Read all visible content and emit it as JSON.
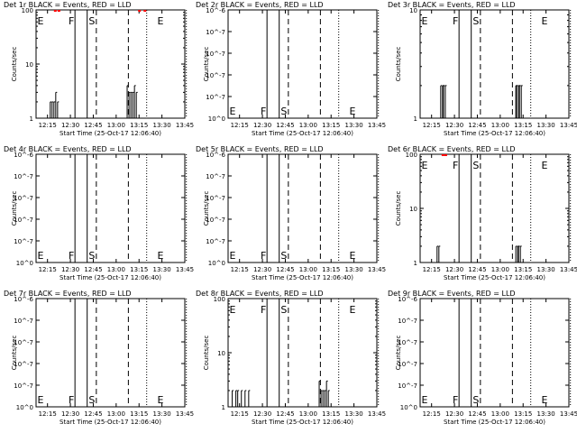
{
  "chart_data": [
    {
      "title": "Det 1r BLACK = Events, RED = LLD",
      "xlabel": "Start Time (25-Oct-17 12:06:40)",
      "ylabel": "Counts/sec",
      "scale": "log",
      "ylim": [
        1,
        100
      ],
      "yticks": [
        "1",
        "10",
        "100"
      ],
      "xticks": [
        "12:15",
        "12:30",
        "12:45",
        "13:00",
        "13:15",
        "13:30",
        "13:45"
      ],
      "markers": [
        "E",
        "F",
        "S",
        "E"
      ],
      "events": [
        [
          12.15,
          1
        ],
        [
          12.27,
          1
        ],
        [
          12.28,
          2
        ],
        [
          12.3,
          2
        ],
        [
          12.32,
          2
        ],
        [
          12.34,
          3
        ],
        [
          12.36,
          2
        ],
        [
          12.38,
          1
        ],
        [
          13.1,
          1
        ],
        [
          13.12,
          4
        ],
        [
          13.14,
          3
        ],
        [
          13.16,
          3
        ],
        [
          13.18,
          3
        ],
        [
          13.2,
          4
        ],
        [
          13.22,
          3
        ],
        [
          13.24,
          1
        ]
      ],
      "lld": [
        [
          12.32,
          100
        ],
        [
          12.36,
          100
        ],
        [
          13.24,
          100
        ],
        [
          13.3,
          100
        ]
      ]
    },
    {
      "title": "Det 2r BLACK = Events, RED = LLD",
      "xlabel": "Start Time (25-Oct-17 12:06:40)",
      "ylabel": "Counts/sec",
      "scale": "linear",
      "ylim": [
        0,
        1e-06
      ],
      "yticks": [
        "10^0",
        "10^-7",
        "10^-7",
        "10^-7",
        "10^-7",
        "10^-6"
      ],
      "xticks": [
        "12:15",
        "12:30",
        "12:45",
        "13:00",
        "13:15",
        "13:30",
        "13:45"
      ],
      "markers": [
        "E",
        "F",
        "S",
        "E"
      ],
      "events": [],
      "lld": []
    },
    {
      "title": "Det 3r BLACK = Events, RED = LLD",
      "xlabel": "Start Time (25-Oct-17 12:06:40)",
      "ylabel": "Counts/sec",
      "scale": "log",
      "ylim": [
        1,
        10
      ],
      "yticks": [
        "1",
        "10"
      ],
      "xticks": [
        "12:15",
        "12:30",
        "12:45",
        "13:00",
        "13:15",
        "13:30",
        "13:45"
      ],
      "markers": [
        "E",
        "F",
        "S",
        "E"
      ],
      "events": [
        [
          12.34,
          1
        ],
        [
          12.35,
          2
        ],
        [
          12.36,
          1
        ],
        [
          12.37,
          2
        ],
        [
          12.38,
          2
        ],
        [
          12.39,
          1
        ],
        [
          12.4,
          2
        ],
        [
          12.41,
          1
        ],
        [
          13.16,
          1
        ],
        [
          13.17,
          2
        ],
        [
          13.18,
          2
        ],
        [
          13.19,
          1
        ],
        [
          13.2,
          2
        ],
        [
          13.21,
          2
        ],
        [
          13.22,
          1
        ],
        [
          13.23,
          2
        ],
        [
          13.24,
          1
        ]
      ],
      "lld": []
    },
    {
      "title": "Det 4r BLACK = Events, RED = LLD",
      "xlabel": "Start Time (25-Oct-17 12:06:40)",
      "ylabel": "Counts/sec",
      "scale": "linear",
      "ylim": [
        0,
        1e-06
      ],
      "yticks": [
        "10^0",
        "10^-7",
        "10^-7",
        "10^-7",
        "10^-7",
        "10^-6"
      ],
      "xticks": [
        "12:15",
        "12:30",
        "12:45",
        "13:00",
        "13:15",
        "13:30",
        "13:45"
      ],
      "markers": [
        "E",
        "F",
        "S",
        "E"
      ],
      "events": [],
      "lld": []
    },
    {
      "title": "Det 5r BLACK = Events, RED = LLD",
      "xlabel": "Start Time (25-Oct-17 12:06:40)",
      "ylabel": "Counts/sec",
      "scale": "linear",
      "ylim": [
        0,
        1e-06
      ],
      "yticks": [
        "10^0",
        "10^-7",
        "10^-7",
        "10^-7",
        "10^-7",
        "10^-6"
      ],
      "xticks": [
        "12:15",
        "12:30",
        "12:45",
        "13:00",
        "13:15",
        "13:30",
        "13:45"
      ],
      "markers": [
        "E",
        "F",
        "S",
        "E"
      ],
      "events": [],
      "lld": []
    },
    {
      "title": "Det 6r BLACK = Events, RED = LLD",
      "xlabel": "Start Time (25-Oct-17 12:06:40)",
      "ylabel": "Counts/sec",
      "scale": "log",
      "ylim": [
        1,
        100
      ],
      "yticks": [
        "1",
        "10",
        "100"
      ],
      "xticks": [
        "12:15",
        "12:30",
        "12:45",
        "13:00",
        "13:15",
        "13:30",
        "13:45"
      ],
      "markers": [
        "E",
        "F",
        "S",
        "E"
      ],
      "events": [
        [
          12.3,
          1
        ],
        [
          12.31,
          2
        ],
        [
          12.32,
          1
        ],
        [
          12.33,
          2
        ],
        [
          12.34,
          1
        ],
        [
          13.16,
          1
        ],
        [
          13.17,
          2
        ],
        [
          13.18,
          1
        ],
        [
          13.19,
          2
        ],
        [
          13.2,
          2
        ],
        [
          13.21,
          1
        ],
        [
          13.22,
          2
        ],
        [
          13.23,
          1
        ]
      ],
      "lld": [
        [
          12.36,
          100
        ],
        [
          12.39,
          100
        ]
      ]
    },
    {
      "title": "Det 7r BLACK = Events, RED = LLD",
      "xlabel": "Start Time (25-Oct-17 12:06:40)",
      "ylabel": "Counts/sec",
      "scale": "linear",
      "ylim": [
        0,
        1e-06
      ],
      "yticks": [
        "10^0",
        "10^-7",
        "10^-7",
        "10^-7",
        "10^-7",
        "10^-6"
      ],
      "xticks": [
        "12:15",
        "12:30",
        "12:45",
        "13:00",
        "13:15",
        "13:30",
        "13:45"
      ],
      "markers": [
        "E",
        "F",
        "S",
        "E"
      ],
      "events": [],
      "lld": []
    },
    {
      "title": "Det 8r BLACK = Events, RED = LLD",
      "xlabel": "Start Time (25-Oct-17 12:06:40)",
      "ylabel": "Counts/sec",
      "scale": "log",
      "ylim": [
        1,
        100
      ],
      "yticks": [
        "1",
        "10",
        "100"
      ],
      "xticks": [
        "12:15",
        "12:30",
        "12:45",
        "13:00",
        "13:15",
        "13:30",
        "13:45"
      ],
      "markers": [
        "E",
        "F",
        "S",
        "E"
      ],
      "events": [
        [
          12.15,
          1
        ],
        [
          12.17,
          2
        ],
        [
          12.19,
          1
        ],
        [
          12.21,
          2
        ],
        [
          12.23,
          2
        ],
        [
          12.25,
          1
        ],
        [
          12.27,
          2
        ],
        [
          12.29,
          1
        ],
        [
          12.31,
          2
        ],
        [
          12.33,
          1
        ],
        [
          12.35,
          2
        ],
        [
          12.37,
          1
        ],
        [
          13.1,
          1
        ],
        [
          13.12,
          3
        ],
        [
          13.14,
          2
        ],
        [
          13.16,
          2
        ],
        [
          13.18,
          2
        ],
        [
          13.2,
          3
        ],
        [
          13.22,
          2
        ],
        [
          13.24,
          1
        ]
      ],
      "lld": []
    },
    {
      "title": "Det 9r BLACK = Events, RED = LLD",
      "xlabel": "Start Time (25-Oct-17 12:06:40)",
      "ylabel": "Counts/sec",
      "scale": "linear",
      "ylim": [
        0,
        1e-06
      ],
      "yticks": [
        "10^0",
        "10^-7",
        "10^-7",
        "10^-7",
        "10^-7",
        "10^-6"
      ],
      "xticks": [
        "12:15",
        "12:30",
        "12:45",
        "13:00",
        "13:15",
        "13:30",
        "13:45"
      ],
      "markers": [
        "E",
        "F",
        "S",
        "E"
      ],
      "events": [],
      "lld": []
    }
  ]
}
